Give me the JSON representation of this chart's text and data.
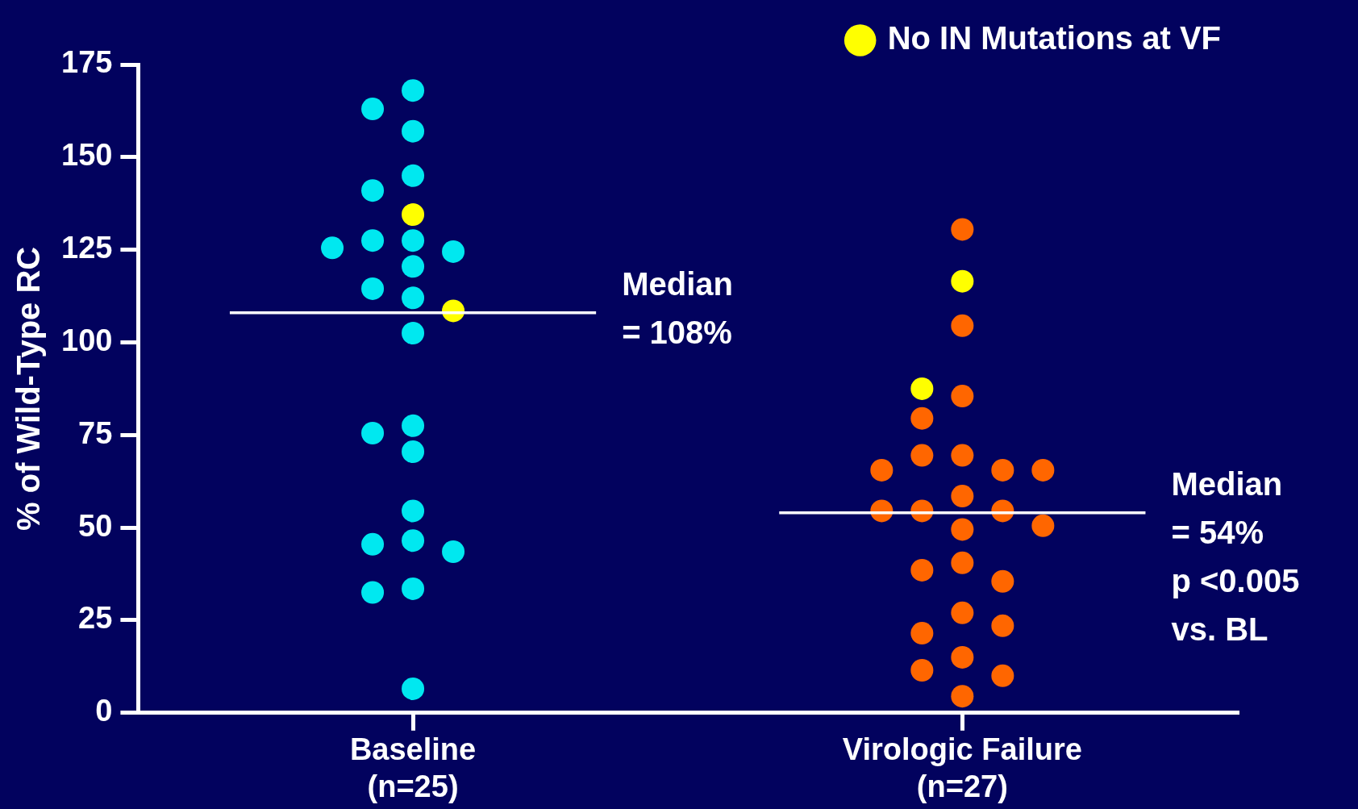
{
  "chart_data": {
    "type": "scatter",
    "ylabel": "% of Wild-Type RC",
    "categories": [
      "Baseline\n(n=25)",
      "Virologic Failure\n(n=27)"
    ],
    "ylim": [
      0,
      175
    ],
    "yticks": [
      0,
      25,
      50,
      75,
      100,
      125,
      150,
      175
    ],
    "grid": false,
    "legend": "top right",
    "marker": "circle",
    "series": [
      {
        "color": "#00e8f0",
        "x": [
          "Baseline\n(n=25)",
          "Baseline\n(n=25)",
          "Baseline\n(n=25)",
          "Baseline\n(n=25)",
          "Baseline\n(n=25)",
          "Baseline\n(n=25)",
          "Baseline\n(n=25)",
          "Baseline\n(n=25)",
          "Baseline\n(n=25)",
          "Baseline\n(n=25)",
          "Baseline\n(n=25)",
          "Baseline\n(n=25)",
          "Baseline\n(n=25)",
          "Baseline\n(n=25)",
          "Baseline\n(n=25)",
          "Baseline\n(n=25)",
          "Baseline\n(n=25)",
          "Baseline\n(n=25)",
          "Baseline\n(n=25)",
          "Baseline\n(n=25)",
          "Baseline\n(n=25)",
          "Baseline\n(n=25)",
          "Baseline\n(n=25)"
        ],
        "values": [
          168,
          163,
          157,
          145,
          141,
          127.5,
          127.5,
          124.5,
          125.5,
          120.5,
          114.5,
          112,
          102.5,
          77.5,
          75.5,
          70.5,
          54.5,
          46.5,
          45.5,
          43.5,
          33.5,
          32.5,
          6.5
        ]
      },
      {
        "color": "#ff6600",
        "x": [
          "Virologic Failure\n(n=27)",
          "Virologic Failure\n(n=27)",
          "Virologic Failure\n(n=27)",
          "Virologic Failure\n(n=27)",
          "Virologic Failure\n(n=27)",
          "Virologic Failure\n(n=27)",
          "Virologic Failure\n(n=27)",
          "Virologic Failure\n(n=27)",
          "Virologic Failure\n(n=27)",
          "Virologic Failure\n(n=27)",
          "Virologic Failure\n(n=27)",
          "Virologic Failure\n(n=27)",
          "Virologic Failure\n(n=27)",
          "Virologic Failure\n(n=27)",
          "Virologic Failure\n(n=27)",
          "Virologic Failure\n(n=27)",
          "Virologic Failure\n(n=27)",
          "Virologic Failure\n(n=27)",
          "Virologic Failure\n(n=27)",
          "Virologic Failure\n(n=27)",
          "Virologic Failure\n(n=27)",
          "Virologic Failure\n(n=27)",
          "Virologic Failure\n(n=27)",
          "Virologic Failure\n(n=27)",
          "Virologic Failure\n(n=27)"
        ],
        "values": [
          130.5,
          104.5,
          85.5,
          79.5,
          69.5,
          69.5,
          65.5,
          65.5,
          65.5,
          58.5,
          54.5,
          54.5,
          54.5,
          49.5,
          50.5,
          40.5,
          38.5,
          35.5,
          27,
          21.5,
          23.5,
          15,
          11.5,
          10,
          4.5
        ]
      },
      {
        "name": "No IN Mutations at VF",
        "color": "#ffff00",
        "x": [
          "Baseline\n(n=25)",
          "Baseline\n(n=25)",
          "Virologic Failure\n(n=27)",
          "Virologic Failure\n(n=27)"
        ],
        "values": [
          134.5,
          108.5,
          116.5,
          87.5
        ]
      }
    ],
    "ref_lines": [
      {
        "axis": "y",
        "value": 108,
        "label": "Median\n= 108%",
        "color": "#ffffff"
      },
      {
        "axis": "y",
        "value": 54,
        "label": "Median\n= 54%\np <0.005\nvs. BL",
        "color": "#ffffff"
      }
    ]
  }
}
